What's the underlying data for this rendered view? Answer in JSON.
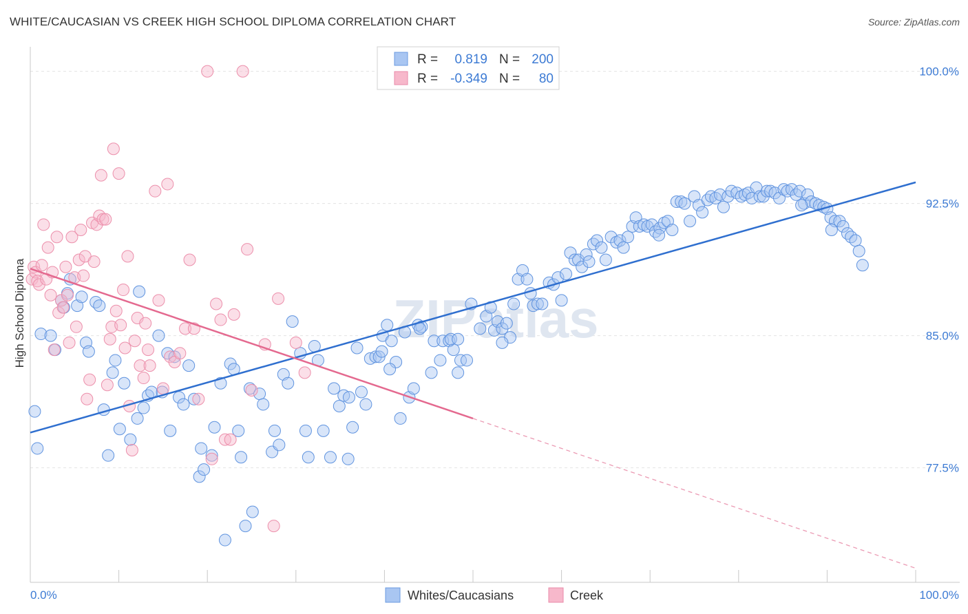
{
  "title": "WHITE/CAUCASIAN VS CREEK HIGH SCHOOL DIPLOMA CORRELATION CHART",
  "source": "Source: ZipAtlas.com",
  "watermark": "ZIPatlas",
  "legend_box": {
    "rows": [
      {
        "r_label": "R =",
        "r_value": "0.819",
        "n_label": "N =",
        "n_value": "200",
        "color": "#8fb5ec"
      },
      {
        "r_label": "R =",
        "r_value": "-0.349",
        "n_label": "N =",
        "n_value": "80",
        "color": "#f4a6be"
      }
    ]
  },
  "chart_data": {
    "type": "scatter",
    "title": "WHITE/CAUCASIAN VS CREEK HIGH SCHOOL DIPLOMA CORRELATION CHART",
    "xlabel": "",
    "ylabel": "High School Diploma",
    "x_tick_labels": [
      "0.0%",
      "100.0%"
    ],
    "y_tick_labels": [
      "100.0%",
      "92.5%",
      "85.0%",
      "77.5%"
    ],
    "y_ticks": [
      100.0,
      92.5,
      85.0,
      77.5
    ],
    "xlim": [
      0,
      100
    ],
    "ylim": [
      71.0,
      101.0
    ],
    "grid": true,
    "legend_position": "bottom",
    "colors": {
      "blue": "#3d7bd4",
      "blue_fill": "#a9c6f2",
      "pink": "#e4698f",
      "pink_fill": "#f7b8cb",
      "axis_text": "#3d7bd4"
    },
    "series": [
      {
        "name": "Whites/Caucasians",
        "color": "#3d7bd4",
        "r": 0.819,
        "n": 200,
        "trend": {
          "x": [
            0,
            100
          ],
          "y": [
            79.5,
            93.7
          ]
        },
        "points": [
          [
            0.5,
            80.7
          ],
          [
            0.8,
            78.6
          ],
          [
            1.2,
            85.1
          ],
          [
            2.3,
            85.0
          ],
          [
            2.8,
            84.2
          ],
          [
            3.5,
            87.0
          ],
          [
            3.8,
            86.6
          ],
          [
            4.2,
            87.4
          ],
          [
            4.5,
            88.2
          ],
          [
            5.3,
            86.7
          ],
          [
            5.8,
            87.2
          ],
          [
            6.3,
            84.6
          ],
          [
            6.6,
            84.1
          ],
          [
            7.4,
            86.9
          ],
          [
            7.8,
            86.7
          ],
          [
            8.3,
            80.8
          ],
          [
            8.8,
            78.2
          ],
          [
            9.3,
            82.9
          ],
          [
            9.6,
            83.6
          ],
          [
            10.1,
            79.7
          ],
          [
            10.6,
            82.3
          ],
          [
            11.3,
            79.1
          ],
          [
            12.1,
            80.3
          ],
          [
            12.3,
            87.5
          ],
          [
            12.8,
            80.9
          ],
          [
            13.3,
            81.6
          ],
          [
            13.7,
            81.8
          ],
          [
            14.5,
            85.0
          ],
          [
            14.9,
            81.8
          ],
          [
            15.5,
            84.0
          ],
          [
            15.8,
            79.6
          ],
          [
            16.3,
            83.8
          ],
          [
            16.8,
            81.5
          ],
          [
            17.3,
            81.1
          ],
          [
            17.9,
            83.3
          ],
          [
            18.5,
            81.4
          ],
          [
            19.1,
            77.0
          ],
          [
            19.3,
            78.6
          ],
          [
            19.6,
            77.4
          ],
          [
            20.5,
            78.2
          ],
          [
            20.8,
            79.8
          ],
          [
            21.5,
            82.3
          ],
          [
            22.0,
            73.4
          ],
          [
            22.6,
            83.4
          ],
          [
            23.0,
            83.1
          ],
          [
            23.5,
            79.6
          ],
          [
            23.8,
            78.1
          ],
          [
            24.3,
            74.2
          ],
          [
            24.8,
            82.0
          ],
          [
            25.1,
            75.0
          ],
          [
            25.9,
            81.7
          ],
          [
            26.3,
            81.1
          ],
          [
            27.3,
            78.4
          ],
          [
            27.6,
            79.6
          ],
          [
            28.1,
            78.8
          ],
          [
            28.6,
            82.8
          ],
          [
            29.1,
            82.3
          ],
          [
            29.6,
            85.8
          ],
          [
            30.5,
            84.0
          ],
          [
            31.1,
            79.6
          ],
          [
            31.4,
            78.1
          ],
          [
            32.1,
            84.4
          ],
          [
            32.5,
            83.6
          ],
          [
            33.1,
            79.6
          ],
          [
            33.9,
            78.1
          ],
          [
            34.3,
            82.0
          ],
          [
            34.9,
            81.0
          ],
          [
            35.4,
            81.6
          ],
          [
            35.9,
            78.0
          ],
          [
            36.4,
            79.8
          ],
          [
            36.9,
            84.3
          ],
          [
            37.4,
            81.8
          ],
          [
            37.9,
            81.1
          ],
          [
            38.4,
            83.7
          ],
          [
            39.0,
            83.8
          ],
          [
            39.4,
            83.8
          ],
          [
            39.8,
            85.0
          ],
          [
            40.3,
            85.6
          ],
          [
            40.8,
            84.7
          ],
          [
            41.3,
            83.5
          ],
          [
            41.8,
            80.3
          ],
          [
            42.3,
            85.2
          ],
          [
            42.8,
            81.5
          ],
          [
            43.3,
            82.0
          ],
          [
            43.8,
            85.6
          ],
          [
            44.2,
            85.5
          ],
          [
            45.3,
            82.9
          ],
          [
            45.6,
            84.7
          ],
          [
            46.3,
            83.6
          ],
          [
            46.6,
            84.7
          ],
          [
            47.3,
            84.7
          ],
          [
            47.8,
            84.2
          ],
          [
            48.3,
            82.9
          ],
          [
            48.6,
            83.6
          ],
          [
            49.3,
            83.6
          ],
          [
            49.8,
            86.8
          ],
          [
            50.8,
            85.4
          ],
          [
            51.5,
            86.1
          ],
          [
            52.0,
            86.6
          ],
          [
            52.4,
            85.3
          ],
          [
            52.8,
            85.8
          ],
          [
            53.3,
            85.4
          ],
          [
            53.8,
            85.7
          ],
          [
            54.2,
            84.9
          ],
          [
            54.6,
            86.8
          ],
          [
            55.1,
            88.2
          ],
          [
            55.6,
            88.7
          ],
          [
            56.1,
            88.2
          ],
          [
            56.5,
            87.4
          ],
          [
            56.8,
            86.7
          ],
          [
            57.3,
            86.8
          ],
          [
            57.8,
            86.8
          ],
          [
            58.6,
            88.0
          ],
          [
            59.1,
            87.9
          ],
          [
            59.6,
            88.3
          ],
          [
            60.0,
            87.0
          ],
          [
            60.5,
            88.5
          ],
          [
            61.0,
            89.7
          ],
          [
            61.5,
            89.3
          ],
          [
            61.9,
            89.3
          ],
          [
            62.3,
            88.9
          ],
          [
            62.8,
            89.6
          ],
          [
            63.1,
            89.2
          ],
          [
            63.6,
            90.2
          ],
          [
            64.0,
            90.4
          ],
          [
            64.5,
            90.0
          ],
          [
            65.0,
            89.3
          ],
          [
            65.6,
            90.6
          ],
          [
            66.2,
            90.3
          ],
          [
            66.6,
            90.4
          ],
          [
            67.0,
            90.0
          ],
          [
            67.5,
            90.6
          ],
          [
            68.0,
            91.2
          ],
          [
            68.4,
            91.7
          ],
          [
            68.8,
            91.2
          ],
          [
            69.3,
            91.3
          ],
          [
            69.7,
            91.2
          ],
          [
            70.2,
            91.3
          ],
          [
            70.6,
            90.9
          ],
          [
            71.1,
            91.1
          ],
          [
            71.6,
            91.4
          ],
          [
            72.0,
            91.5
          ],
          [
            72.5,
            91.0
          ],
          [
            73.0,
            92.6
          ],
          [
            73.5,
            92.6
          ],
          [
            73.9,
            92.5
          ],
          [
            74.5,
            91.5
          ],
          [
            75.0,
            92.9
          ],
          [
            75.5,
            92.4
          ],
          [
            75.9,
            92.0
          ],
          [
            76.5,
            92.7
          ],
          [
            76.9,
            92.9
          ],
          [
            77.4,
            92.8
          ],
          [
            77.9,
            93.0
          ],
          [
            78.3,
            92.3
          ],
          [
            78.8,
            92.9
          ],
          [
            79.2,
            93.2
          ],
          [
            79.8,
            93.1
          ],
          [
            80.3,
            92.9
          ],
          [
            80.7,
            93.0
          ],
          [
            81.1,
            93.1
          ],
          [
            81.5,
            92.8
          ],
          [
            82.0,
            93.4
          ],
          [
            82.4,
            92.9
          ],
          [
            82.8,
            92.9
          ],
          [
            83.2,
            93.2
          ],
          [
            83.6,
            93.2
          ],
          [
            84.1,
            93.1
          ],
          [
            84.6,
            92.8
          ],
          [
            85.1,
            93.3
          ],
          [
            85.5,
            93.2
          ],
          [
            86.0,
            93.3
          ],
          [
            86.5,
            93.0
          ],
          [
            86.9,
            93.2
          ],
          [
            87.4,
            92.5
          ],
          [
            87.8,
            93.0
          ],
          [
            88.2,
            92.6
          ],
          [
            88.7,
            92.5
          ],
          [
            89.1,
            92.4
          ],
          [
            89.6,
            92.3
          ],
          [
            90.0,
            92.2
          ],
          [
            90.4,
            91.7
          ],
          [
            90.9,
            91.5
          ],
          [
            91.4,
            91.5
          ],
          [
            91.8,
            91.2
          ],
          [
            92.3,
            90.8
          ],
          [
            92.7,
            90.6
          ],
          [
            93.2,
            90.4
          ],
          [
            93.6,
            89.8
          ],
          [
            94.0,
            89.0
          ],
          [
            90.5,
            91.0
          ],
          [
            87.1,
            92.4
          ],
          [
            71.0,
            90.7
          ],
          [
            47.5,
            84.8
          ],
          [
            48.3,
            84.8
          ],
          [
            39.7,
            84.1
          ],
          [
            36.0,
            81.5
          ],
          [
            40.6,
            83.1
          ],
          [
            53.3,
            84.6
          ],
          [
            44.0,
            85.4
          ]
        ]
      },
      {
        "name": "Creek",
        "color": "#e4698f",
        "r": -0.349,
        "n": 80,
        "trend": {
          "x": [
            0,
            50
          ],
          "y": [
            88.8,
            80.3
          ]
        },
        "trend_dashed": {
          "x": [
            50,
            100
          ],
          "y": [
            80.3,
            71.8
          ]
        },
        "points": [
          [
            0.2,
            88.2
          ],
          [
            0.4,
            88.9
          ],
          [
            0.6,
            88.6
          ],
          [
            0.8,
            88.1
          ],
          [
            1.0,
            87.9
          ],
          [
            1.3,
            89.0
          ],
          [
            1.5,
            91.3
          ],
          [
            1.8,
            88.2
          ],
          [
            2.0,
            90.0
          ],
          [
            2.3,
            87.3
          ],
          [
            2.5,
            88.6
          ],
          [
            2.7,
            84.2
          ],
          [
            3.0,
            90.6
          ],
          [
            3.2,
            86.3
          ],
          [
            3.5,
            87.0
          ],
          [
            3.7,
            86.6
          ],
          [
            4.0,
            88.9
          ],
          [
            4.2,
            87.3
          ],
          [
            4.4,
            84.6
          ],
          [
            4.7,
            90.6
          ],
          [
            5.0,
            88.3
          ],
          [
            5.2,
            85.5
          ],
          [
            5.5,
            89.3
          ],
          [
            5.7,
            91.0
          ],
          [
            6.0,
            88.4
          ],
          [
            6.2,
            89.5
          ],
          [
            6.4,
            81.4
          ],
          [
            6.7,
            82.5
          ],
          [
            7.0,
            91.4
          ],
          [
            7.2,
            89.2
          ],
          [
            7.5,
            91.3
          ],
          [
            7.8,
            91.8
          ],
          [
            8.0,
            94.1
          ],
          [
            8.2,
            91.6
          ],
          [
            8.5,
            91.6
          ],
          [
            8.7,
            82.2
          ],
          [
            9.0,
            84.8
          ],
          [
            9.2,
            85.5
          ],
          [
            9.4,
            95.6
          ],
          [
            9.7,
            86.4
          ],
          [
            10.0,
            94.2
          ],
          [
            10.2,
            85.6
          ],
          [
            10.5,
            87.6
          ],
          [
            10.7,
            84.3
          ],
          [
            11.0,
            89.5
          ],
          [
            11.2,
            81.0
          ],
          [
            11.5,
            78.5
          ],
          [
            11.8,
            84.7
          ],
          [
            12.1,
            86.0
          ],
          [
            12.4,
            83.3
          ],
          [
            12.8,
            82.6
          ],
          [
            13.0,
            85.7
          ],
          [
            13.3,
            84.2
          ],
          [
            13.5,
            83.3
          ],
          [
            14.1,
            93.2
          ],
          [
            14.5,
            87.0
          ],
          [
            15.0,
            82.0
          ],
          [
            15.5,
            93.6
          ],
          [
            15.8,
            83.8
          ],
          [
            16.3,
            83.5
          ],
          [
            16.9,
            84.0
          ],
          [
            17.5,
            85.4
          ],
          [
            18.0,
            89.3
          ],
          [
            18.5,
            85.4
          ],
          [
            19.0,
            81.4
          ],
          [
            20.0,
            100.0
          ],
          [
            20.5,
            78.0
          ],
          [
            21.0,
            86.8
          ],
          [
            21.5,
            85.9
          ],
          [
            22.0,
            79.1
          ],
          [
            22.6,
            79.1
          ],
          [
            23.0,
            86.2
          ],
          [
            24.0,
            100.0
          ],
          [
            24.5,
            89.9
          ],
          [
            25.0,
            81.9
          ],
          [
            26.5,
            84.5
          ],
          [
            27.5,
            74.2
          ],
          [
            28.0,
            87.1
          ],
          [
            30.0,
            84.6
          ],
          [
            31.0,
            82.9
          ]
        ]
      }
    ]
  },
  "bottom_legend": [
    {
      "label": "Whites/Caucasians",
      "color": "#a9c6f2"
    },
    {
      "label": "Creek",
      "color": "#f7b8cb"
    }
  ]
}
